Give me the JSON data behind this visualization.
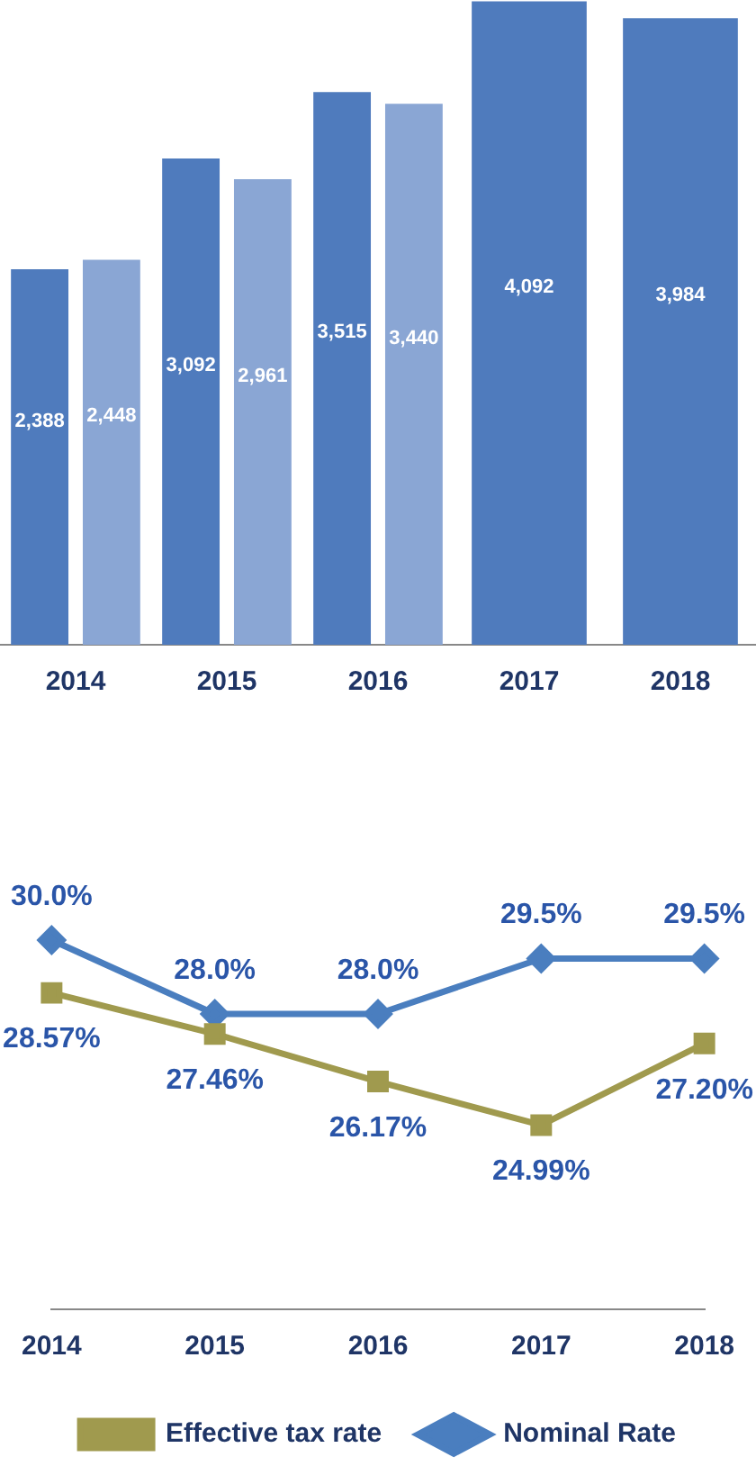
{
  "chart_data": [
    {
      "type": "bar",
      "categories": [
        "2014",
        "2015",
        "2016",
        "2017",
        "2018"
      ],
      "ylim": [
        0,
        4100
      ],
      "tick_labels": "x",
      "grid": false,
      "legend": false,
      "series": [
        {
          "color": "#4f7bbd",
          "values": [
            2388,
            3092,
            3515,
            4092,
            3984
          ],
          "value_labels": [
            "2,388",
            "3,092",
            "3,515",
            "4,092",
            "3,984"
          ]
        },
        {
          "color": "#8aa6d4",
          "values": [
            2448,
            2961,
            3440,
            null,
            null
          ],
          "value_labels": [
            "2,448",
            "2,961",
            "3,440",
            null,
            null
          ]
        }
      ]
    },
    {
      "type": "line",
      "categories": [
        "2014",
        "2015",
        "2016",
        "2017",
        "2018"
      ],
      "tick_labels": "x",
      "grid": false,
      "legend": "bottom",
      "series": [
        {
          "name": "Effective tax rate",
          "color": "#a09a4e",
          "marker": "square",
          "values": [
            28.57,
            27.46,
            26.17,
            24.99,
            27.2
          ],
          "value_labels": [
            "28.57%",
            "27.46%",
            "26.17%",
            "24.99%",
            "27.20%"
          ]
        },
        {
          "name": "Nominal Rate",
          "color": "#4a7ebf",
          "marker": "diamond",
          "values": [
            30,
            28,
            28,
            29.5,
            29.5
          ],
          "value_labels": [
            "30.0%",
            "28.0%",
            "28.0%",
            "29.5%",
            "29.5%"
          ]
        }
      ]
    }
  ]
}
